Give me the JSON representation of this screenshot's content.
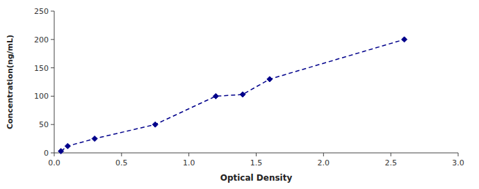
{
  "chart_data": {
    "type": "line",
    "x": [
      0.05,
      0.1,
      0.3,
      0.75,
      1.2,
      1.4,
      1.6,
      2.6
    ],
    "values": [
      3,
      12,
      25,
      50,
      100,
      103,
      130,
      200
    ],
    "color": "#00008B",
    "marker": "diamond",
    "line_style": "dashed",
    "xlabel": "Optical Density",
    "ylabel": "Concentration(ng/mL)",
    "xlim": [
      0,
      3
    ],
    "ylim": [
      0,
      250
    ],
    "xticks": [
      {
        "value": 0,
        "label": "0.0"
      },
      0.5,
      {
        "value": 1,
        "label": "1.0"
      },
      1.5,
      {
        "value": 2,
        "label": "2.0"
      },
      2.5,
      {
        "value": 3,
        "label": "3.0"
      }
    ],
    "yticks": [
      0,
      50,
      100,
      150,
      200,
      250
    ]
  }
}
